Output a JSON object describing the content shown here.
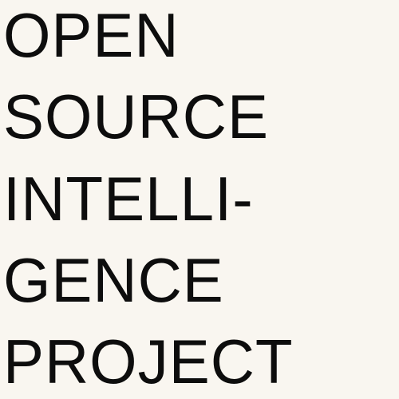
{
  "title": {
    "lines": [
      "OPEN",
      "SOURCE",
      "INTELLI-",
      "GENCE",
      "PROJECT"
    ]
  },
  "colors": {
    "background": "#f9f6f0",
    "text": "#0d0d0d"
  }
}
